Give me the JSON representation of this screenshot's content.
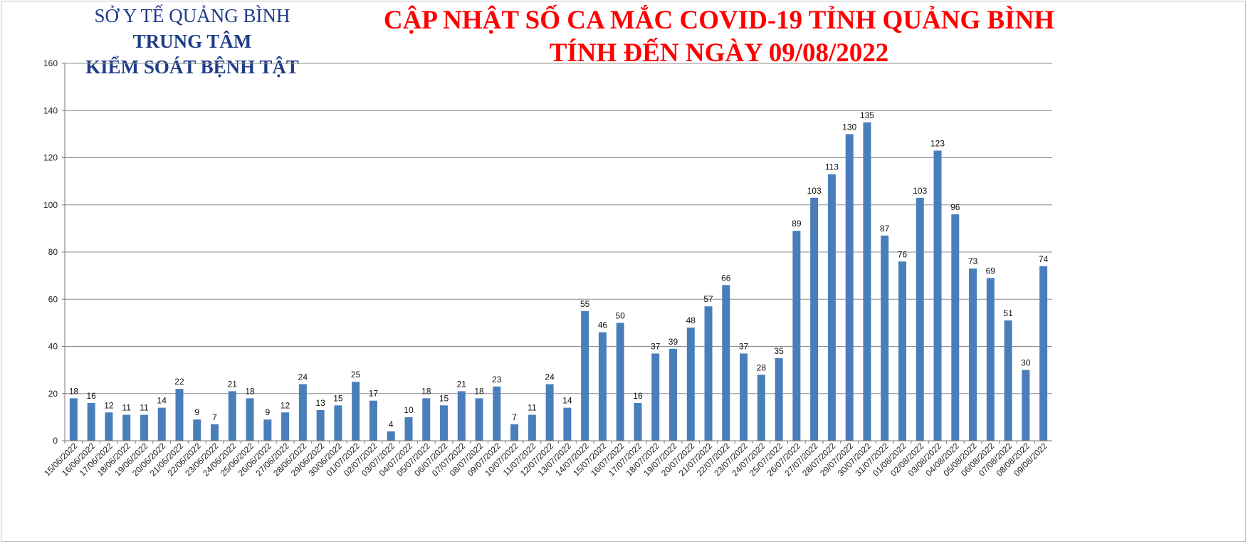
{
  "header": {
    "org_line1": "SỞ Y TẾ QUẢNG BÌNH",
    "org_line2": "TRUNG TÂM",
    "org_line3": "KIỂM SOÁT BỆNH TẬT",
    "title_line1": "CẬP NHẬT SỐ CA MẮC COVID-19 TỈNH QUẢNG BÌNH",
    "title_line2": "TÍNH ĐẾN NGÀY 09/08/2022"
  },
  "colors": {
    "bar": "#4a7ebb",
    "grid": "#8c8c8c",
    "title": "#ff0000",
    "org": "#1f3c88"
  },
  "chart_data": {
    "type": "bar",
    "ylim": [
      0,
      160
    ],
    "yticks": [
      0,
      20,
      40,
      60,
      80,
      100,
      120,
      140,
      160
    ],
    "grid": true,
    "categories": [
      "15/06/2022",
      "16/06/2022",
      "17/06/2022",
      "18/06/2022",
      "19/06/2022",
      "20/06/2022",
      "21/06/2022",
      "22/06/2022",
      "23/06/2022",
      "24/06/2022",
      "25/06/2022",
      "26/06/2022",
      "27/06/2022",
      "28/06/2022",
      "29/06/2022",
      "30/06/2022",
      "01/07/2022",
      "02/07/2022",
      "03/07/2022",
      "04/07/2022",
      "05/07/2022",
      "06/07/2022",
      "07/07/2022",
      "08/07/2022",
      "09/07/2022",
      "10/07/2022",
      "11/07/2022",
      "12/07/2022",
      "13/07/2022",
      "14/07/2022",
      "15/07/2022",
      "16/07/2022",
      "17/07/2022",
      "18/07/2022",
      "19/07/2022",
      "20/07/2022",
      "21/07/2022",
      "22/07/2022",
      "23/07/2022",
      "24/07/2022",
      "25/07/2022",
      "26/07/2022",
      "27/07/2022",
      "28/07/2022",
      "29/07/2022",
      "30/07/2022",
      "31/07/2022",
      "01/08/2022",
      "02/08/2022",
      "03/08/2022",
      "04/08/2022",
      "05/08/2022",
      "06/08/2022",
      "07/08/2022",
      "08/08/2022",
      "09/08/2022"
    ],
    "values": [
      18,
      16,
      12,
      11,
      11,
      14,
      22,
      9,
      7,
      21,
      18,
      9,
      12,
      24,
      13,
      15,
      25,
      17,
      4,
      10,
      18,
      15,
      21,
      18,
      23,
      7,
      11,
      24,
      14,
      55,
      46,
      50,
      16,
      37,
      39,
      48,
      57,
      66,
      37,
      28,
      35,
      89,
      103,
      113,
      130,
      135,
      87,
      76,
      103,
      123,
      96,
      73,
      69,
      51,
      30,
      74
    ]
  }
}
